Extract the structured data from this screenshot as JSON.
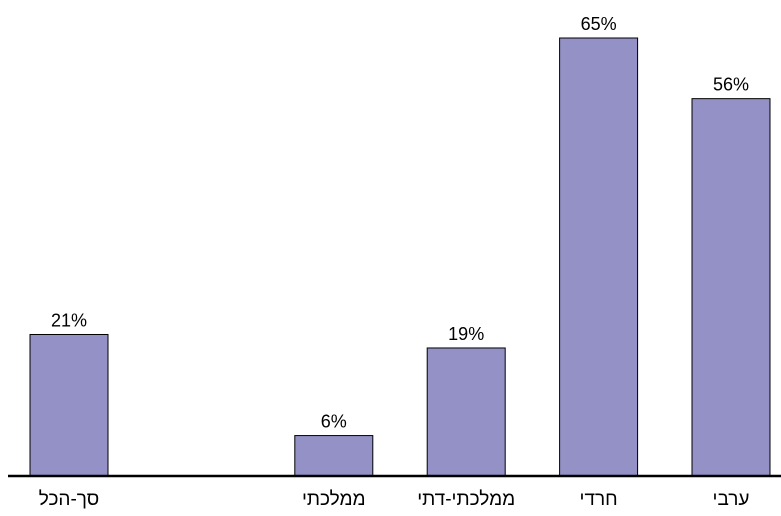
{
  "chart_data": {
    "type": "bar",
    "categories": [
      "סך-הכל",
      "",
      "ממלכתי",
      "ממלכתי-דתי",
      "חרדי",
      "ערבי"
    ],
    "values": [
      21,
      null,
      6,
      19,
      65,
      56
    ],
    "data_labels": [
      "21%",
      "",
      "6%",
      "19%",
      "65%",
      "56%"
    ],
    "unit": "%",
    "ylim": [
      0,
      65
    ],
    "grid": false,
    "bar_color": "#9391c5",
    "bar_edge_color": "#000000",
    "title": "",
    "xlabel": "",
    "ylabel": ""
  }
}
